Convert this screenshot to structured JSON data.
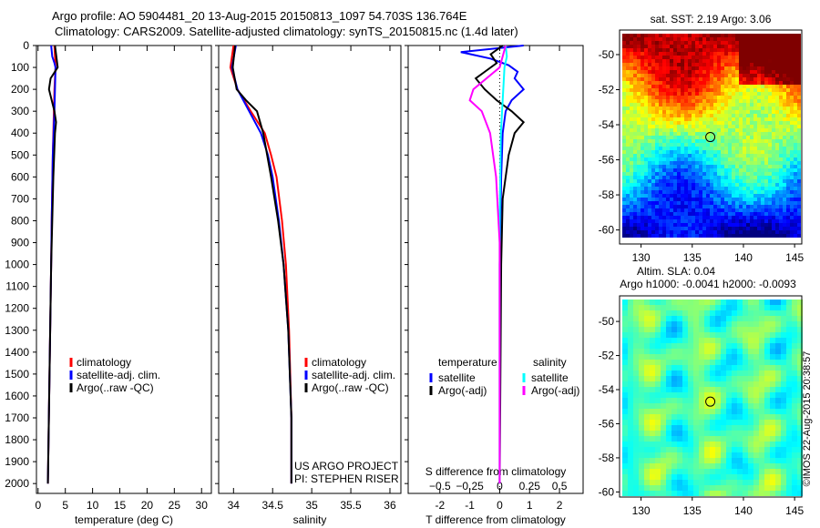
{
  "title": {
    "line1": "Argo profile: AO 5904481_20 13-Aug-2015 20150813_1097 54.703S 136.764E",
    "line2": "Climatology: CARS2009. Satellite-adjusted climatology: synTS_20150815.nc (1.4d later)"
  },
  "credit": "©IMOS 22-Aug-2015 20:38:57",
  "project": {
    "line1": "US ARGO PROJECT",
    "line2": "PI: STEPHEN RISER"
  },
  "colors": {
    "clim": "#ff0000",
    "sat": "#0000ff",
    "argo": "#000000",
    "sal_sat": "#00ffff",
    "sal_argo": "#ff00ff"
  },
  "chart_data": [
    {
      "type": "line",
      "id": "temperature",
      "xlabel": "temperature (deg C)",
      "xlim": [
        -0.3,
        31.8
      ],
      "ylim": [
        2045,
        0
      ],
      "xticks": [
        0,
        5,
        10,
        15,
        20,
        25,
        30
      ],
      "yticks": [
        0,
        100,
        200,
        300,
        400,
        500,
        600,
        700,
        800,
        900,
        1000,
        1100,
        1200,
        1300,
        1400,
        1500,
        1600,
        1700,
        1800,
        1900,
        2000
      ],
      "legend": [
        "climatology",
        "satellite-adj. clim.",
        "Argo(..raw -QC)"
      ],
      "series": [
        {
          "name": "climatology",
          "color": "#ff0000",
          "depth": [
            0,
            50,
            100,
            200,
            300,
            500,
            800,
            1000,
            1500,
            2000
          ],
          "values": [
            3.0,
            3.1,
            3.2,
            3.0,
            2.9,
            2.7,
            2.5,
            2.4,
            2.1,
            1.8
          ]
        },
        {
          "name": "satellite-adj. clim.",
          "color": "#0000ff",
          "depth": [
            0,
            50,
            80,
            100,
            200,
            300,
            500,
            800,
            1000,
            1500,
            2000
          ],
          "values": [
            2.4,
            2.6,
            3.0,
            3.2,
            3.1,
            3.0,
            2.7,
            2.5,
            2.4,
            2.1,
            1.8
          ]
        },
        {
          "name": "Argo(..raw -QC)",
          "color": "#000000",
          "depth": [
            0,
            60,
            100,
            150,
            200,
            250,
            300,
            350,
            400,
            600,
            800,
            1000,
            1500,
            2000
          ],
          "values": [
            3.1,
            3.4,
            3.6,
            2.3,
            2.0,
            2.5,
            3.0,
            3.3,
            3.1,
            2.8,
            2.6,
            2.4,
            2.1,
            1.8
          ]
        }
      ]
    },
    {
      "type": "line",
      "id": "salinity",
      "xlabel": "salinity",
      "xlim": [
        33.81,
        36.14
      ],
      "ylim": [
        2045,
        0
      ],
      "xticks": [
        34,
        34.5,
        35,
        35.5,
        36
      ],
      "legend": [
        "climatology",
        "satellite-adj. clim.",
        "Argo(..raw -QC)"
      ],
      "series": [
        {
          "name": "climatology",
          "color": "#ff0000",
          "depth": [
            0,
            100,
            200,
            300,
            400,
            500,
            600,
            800,
            1000,
            1300,
            1700,
            2000
          ],
          "values": [
            34.0,
            33.96,
            34.05,
            34.22,
            34.4,
            34.48,
            34.55,
            34.62,
            34.67,
            34.71,
            34.74,
            34.74
          ]
        },
        {
          "name": "satellite-adj. clim.",
          "color": "#0000ff",
          "depth": [
            0,
            100,
            200,
            300,
            400,
            500,
            600,
            800,
            1000,
            1300,
            1700,
            2000
          ],
          "values": [
            34.03,
            33.98,
            34.05,
            34.2,
            34.35,
            34.44,
            34.5,
            34.58,
            34.64,
            34.7,
            34.74,
            34.74
          ]
        },
        {
          "name": "Argo(..raw -QC)",
          "color": "#000000",
          "depth": [
            0,
            100,
            200,
            250,
            300,
            400,
            500,
            600,
            800,
            1000,
            1300,
            1700,
            2000
          ],
          "values": [
            34.02,
            33.99,
            34.04,
            34.16,
            34.3,
            34.38,
            34.43,
            34.48,
            34.57,
            34.64,
            34.7,
            34.74,
            34.74
          ]
        }
      ]
    },
    {
      "type": "line",
      "id": "difference",
      "xlabel": "T difference from climatology",
      "x2label": "S difference from climatology",
      "xlim": [
        -3.06,
        2.79
      ],
      "ylim": [
        2045,
        0
      ],
      "xticks": [
        -2,
        -1,
        0,
        1,
        2
      ],
      "x2ticks": [
        -0.5,
        -0.25,
        0,
        0.25,
        0.5
      ],
      "s_to_t_scale": 4,
      "legend_headers": [
        "temperature",
        "salinity"
      ],
      "legend": [
        "satellite",
        "Argo(-adj)",
        "satellite",
        "Argo(-adj)"
      ],
      "series": [
        {
          "name": "T satellite",
          "color": "#0000ff",
          "units": "T",
          "depth": [
            0,
            30,
            60,
            90,
            120,
            150,
            200,
            250,
            300,
            400,
            600,
            1000,
            2000
          ],
          "values": [
            0.8,
            -1.3,
            -0.3,
            0.3,
            0.6,
            0.5,
            0.8,
            0.4,
            0.2,
            0.1,
            0.05,
            0,
            0
          ]
        },
        {
          "name": "T Argo(-adj)",
          "color": "#000000",
          "units": "T",
          "depth": [
            0,
            40,
            80,
            120,
            150,
            200,
            250,
            300,
            350,
            400,
            500,
            700,
            1000,
            2000
          ],
          "values": [
            0.1,
            -0.3,
            -0.1,
            -0.5,
            -0.8,
            -0.5,
            -0.1,
            0.4,
            0.8,
            0.5,
            0.3,
            0.1,
            0.05,
            0
          ]
        },
        {
          "name": "S satellite",
          "color": "#00ffff",
          "units": "S",
          "depth": [
            0,
            50,
            100,
            200,
            400,
            800,
            2000
          ],
          "values": [
            0.05,
            0.06,
            0.04,
            0.03,
            0.01,
            0,
            0
          ]
        },
        {
          "name": "S Argo(-adj)",
          "color": "#ff00ff",
          "units": "S",
          "depth": [
            0,
            100,
            200,
            250,
            300,
            400,
            600,
            900,
            1200,
            2000
          ],
          "values": [
            0.05,
            0,
            -0.22,
            -0.25,
            -0.15,
            -0.08,
            -0.03,
            0,
            0,
            0
          ]
        }
      ]
    },
    {
      "type": "heatmap",
      "id": "sst_map",
      "title": "sat. SST: 2.19 Argo: 3.06",
      "xlim": [
        127.9,
        145.7
      ],
      "ylim": [
        -60.8,
        -48.6
      ],
      "xticks": [
        130,
        135,
        140,
        145
      ],
      "yticks": [
        -50,
        -52,
        -54,
        -56,
        -58,
        -60
      ],
      "marker": {
        "lon": 136.764,
        "lat": -54.703
      }
    },
    {
      "type": "heatmap",
      "id": "sla_map",
      "title": "Altim. SLA: 0.04",
      "subtitle": "Argo h1000: -0.0041 h2000: -0.0093",
      "xlim": [
        127.9,
        145.7
      ],
      "ylim": [
        -60.3,
        -48.5
      ],
      "xticks": [
        130,
        135,
        140,
        145
      ],
      "yticks": [
        -50,
        -52,
        -54,
        -56,
        -58,
        -60
      ],
      "marker": {
        "lon": 136.764,
        "lat": -54.703
      }
    }
  ]
}
